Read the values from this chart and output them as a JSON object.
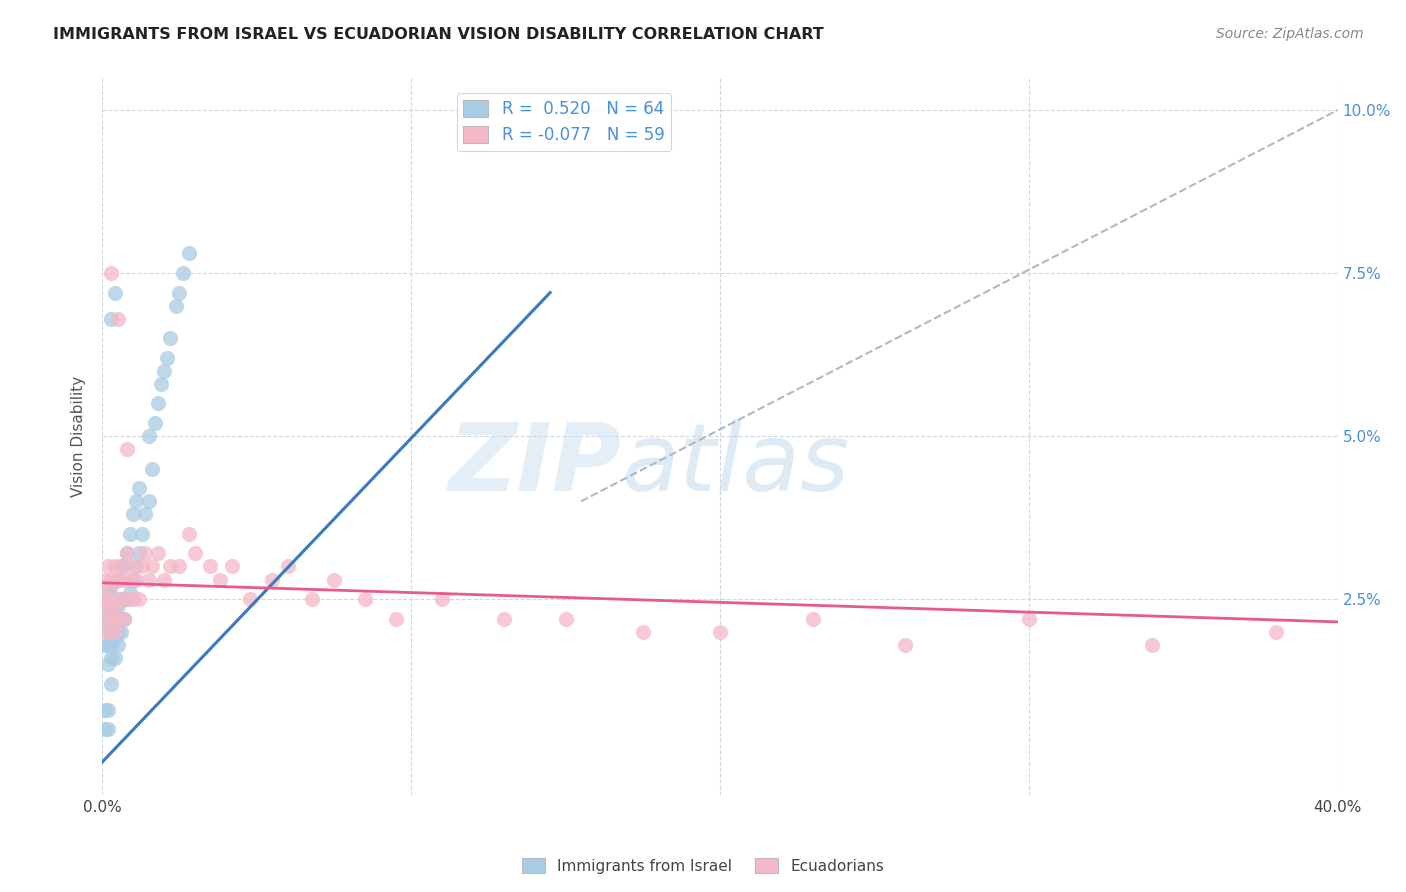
{
  "title": "IMMIGRANTS FROM ISRAEL VS ECUADORIAN VISION DISABILITY CORRELATION CHART",
  "source": "Source: ZipAtlas.com",
  "ylabel": "Vision Disability",
  "xlim": [
    0.0,
    0.4
  ],
  "ylim": [
    -0.005,
    0.105
  ],
  "yticks_right": [
    0.025,
    0.05,
    0.075,
    0.1
  ],
  "yticklabels_right": [
    "2.5%",
    "5.0%",
    "7.5%",
    "10.0%"
  ],
  "legend_r1": "R =  0.520   N = 64",
  "legend_r2": "R = -0.077   N = 59",
  "color_blue": "#a8cce4",
  "color_pink": "#f4b8c8",
  "color_blue_line": "#3a7abf",
  "color_pink_line": "#e85a8a",
  "color_dashed": "#b0b8c8",
  "israel_line_x": [
    0.0,
    0.145
  ],
  "israel_line_y": [
    0.0,
    0.072
  ],
  "ecuador_line_x": [
    0.0,
    0.4
  ],
  "ecuador_line_y": [
    0.0275,
    0.0215
  ],
  "diag_line_x": [
    0.155,
    0.4
  ],
  "diag_line_y": [
    0.04,
    0.1
  ],
  "watermark_zip": "ZIP",
  "watermark_atlas": "atlas",
  "bg_color": "#ffffff",
  "grid_color": "#d0d8e4",
  "israel_x": [
    0.001,
    0.001,
    0.001,
    0.002,
    0.002,
    0.002,
    0.002,
    0.002,
    0.002,
    0.003,
    0.003,
    0.003,
    0.003,
    0.003,
    0.003,
    0.003,
    0.004,
    0.004,
    0.004,
    0.004,
    0.004,
    0.005,
    0.005,
    0.005,
    0.005,
    0.005,
    0.006,
    0.006,
    0.006,
    0.006,
    0.007,
    0.007,
    0.007,
    0.008,
    0.008,
    0.009,
    0.009,
    0.01,
    0.01,
    0.011,
    0.011,
    0.012,
    0.012,
    0.013,
    0.014,
    0.015,
    0.015,
    0.016,
    0.017,
    0.018,
    0.019,
    0.02,
    0.021,
    0.022,
    0.024,
    0.025,
    0.026,
    0.028,
    0.001,
    0.001,
    0.002,
    0.002,
    0.003,
    0.004
  ],
  "israel_y": [
    0.018,
    0.022,
    0.025,
    0.015,
    0.018,
    0.02,
    0.022,
    0.024,
    0.026,
    0.012,
    0.016,
    0.018,
    0.02,
    0.022,
    0.024,
    0.027,
    0.016,
    0.019,
    0.021,
    0.023,
    0.025,
    0.018,
    0.02,
    0.022,
    0.024,
    0.028,
    0.02,
    0.022,
    0.025,
    0.03,
    0.022,
    0.025,
    0.03,
    0.025,
    0.032,
    0.026,
    0.035,
    0.028,
    0.038,
    0.03,
    0.04,
    0.032,
    0.042,
    0.035,
    0.038,
    0.04,
    0.05,
    0.045,
    0.052,
    0.055,
    0.058,
    0.06,
    0.062,
    0.065,
    0.07,
    0.072,
    0.075,
    0.078,
    0.005,
    0.008,
    0.005,
    0.008,
    0.068,
    0.072
  ],
  "ecuador_x": [
    0.001,
    0.001,
    0.001,
    0.002,
    0.002,
    0.002,
    0.002,
    0.003,
    0.003,
    0.003,
    0.004,
    0.004,
    0.004,
    0.005,
    0.005,
    0.006,
    0.006,
    0.007,
    0.007,
    0.008,
    0.008,
    0.009,
    0.01,
    0.01,
    0.011,
    0.012,
    0.013,
    0.014,
    0.015,
    0.016,
    0.018,
    0.02,
    0.022,
    0.025,
    0.028,
    0.03,
    0.035,
    0.038,
    0.042,
    0.048,
    0.055,
    0.06,
    0.068,
    0.075,
    0.085,
    0.095,
    0.11,
    0.13,
    0.15,
    0.175,
    0.2,
    0.23,
    0.26,
    0.3,
    0.34,
    0.38,
    0.003,
    0.005,
    0.008
  ],
  "ecuador_y": [
    0.022,
    0.025,
    0.028,
    0.02,
    0.024,
    0.027,
    0.03,
    0.022,
    0.025,
    0.028,
    0.02,
    0.024,
    0.03,
    0.022,
    0.028,
    0.025,
    0.03,
    0.022,
    0.028,
    0.025,
    0.032,
    0.028,
    0.025,
    0.03,
    0.028,
    0.025,
    0.03,
    0.032,
    0.028,
    0.03,
    0.032,
    0.028,
    0.03,
    0.03,
    0.035,
    0.032,
    0.03,
    0.028,
    0.03,
    0.025,
    0.028,
    0.03,
    0.025,
    0.028,
    0.025,
    0.022,
    0.025,
    0.022,
    0.022,
    0.02,
    0.02,
    0.022,
    0.018,
    0.022,
    0.018,
    0.02,
    0.075,
    0.068,
    0.048
  ]
}
